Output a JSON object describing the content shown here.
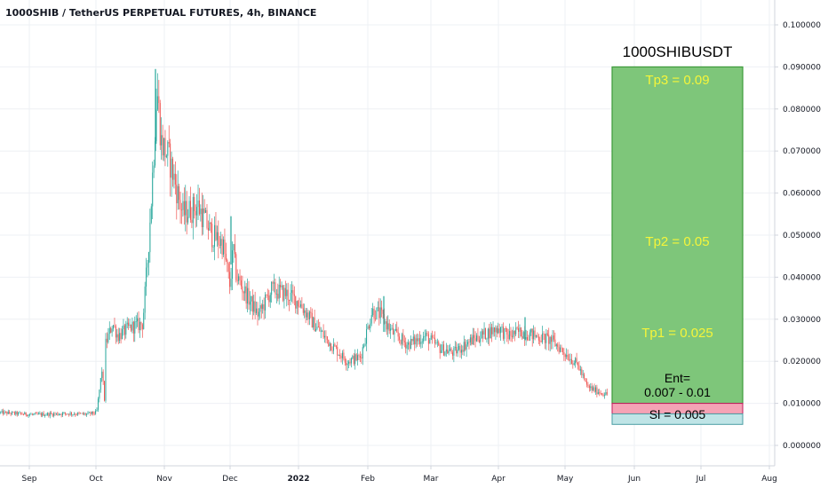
{
  "header": {
    "title": "1000SHIB / TetherUS PERPETUAL FUTURES, 4h, BINANCE"
  },
  "colors": {
    "up": "#26a69a",
    "down": "#ef5350",
    "grid": "#eef0f4",
    "profit_zone": "#7ec67a",
    "loss_zone": "#f5a3b5",
    "sl_zone": "#bfe4e6",
    "tp_text": "#f5f53a"
  },
  "annotations": {
    "symbol": "1000SHIBUSDT",
    "tp3": "Tp3 = 0.09",
    "tp2": "Tp2 = 0.05",
    "tp1": "Tp1 = 0.025",
    "entry_line1": "Ent=",
    "entry_line2": "0.007 - 0.01",
    "sl": "Sl = 0.005"
  },
  "chart_data": {
    "type": "candlestick",
    "title": "1000SHIB / TetherUS PERPETUAL FUTURES, 4h, BINANCE",
    "x_tick_labels": [
      "Sep",
      "Oct",
      "Nov",
      "Dec",
      "2022",
      "Feb",
      "Mar",
      "Apr",
      "May",
      "Jun",
      "Jul",
      "Aug"
    ],
    "y_tick_labels": [
      "0.100000",
      "0.090000",
      "0.080000",
      "0.070000",
      "0.060000",
      "0.050000",
      "0.040000",
      "0.030000",
      "0.020000",
      "0.010000",
      "0.000000"
    ],
    "ylim": [
      0,
      0.1
    ],
    "series": [
      {
        "x": [
          "Aug 20",
          "Aug 28",
          "Sep 5",
          "Sep 12",
          "Sep 20",
          "Sep 28",
          "Oct 1",
          "Oct 3",
          "Oct 5",
          "Oct 8",
          "Oct 10",
          "Oct 15",
          "Oct 20",
          "Oct 24",
          "Oct 26",
          "Oct 28",
          "Oct 30",
          "Nov 2",
          "Nov 5",
          "Nov 10",
          "Nov 15",
          "Nov 20",
          "Nov 25",
          "Nov 30",
          "Dec 2",
          "Dec 5",
          "Dec 10",
          "Dec 15",
          "Dec 20",
          "Dec 27",
          "Jan 1",
          "Jan 7",
          "Jan 15",
          "Jan 21",
          "Jan 28",
          "Feb 1",
          "Feb 5",
          "Feb 12",
          "Feb 20",
          "Feb 28",
          "Mar 5",
          "Mar 12",
          "Mar 20",
          "Mar 28",
          "Apr 1",
          "Apr 5",
          "Apr 12",
          "Apr 20",
          "Apr 28",
          "May 5",
          "May 9",
          "May 12",
          "May 16",
          "May 19"
        ],
        "close": [
          0.0078,
          0.0073,
          0.0076,
          0.0074,
          0.0082,
          0.0076,
          0.0078,
          0.018,
          0.024,
          0.029,
          0.026,
          0.028,
          0.029,
          0.046,
          0.06,
          0.085,
          0.072,
          0.068,
          0.055,
          0.057,
          0.05,
          0.048,
          0.038,
          0.047,
          0.042,
          0.04,
          0.036,
          0.031,
          0.037,
          0.036,
          0.034,
          0.029,
          0.024,
          0.02,
          0.021,
          0.032,
          0.031,
          0.027,
          0.024,
          0.026,
          0.023,
          0.022,
          0.025,
          0.027,
          0.028,
          0.026,
          0.027,
          0.026,
          0.025,
          0.021,
          0.019,
          0.014,
          0.013,
          0.012
        ]
      }
    ]
  }
}
